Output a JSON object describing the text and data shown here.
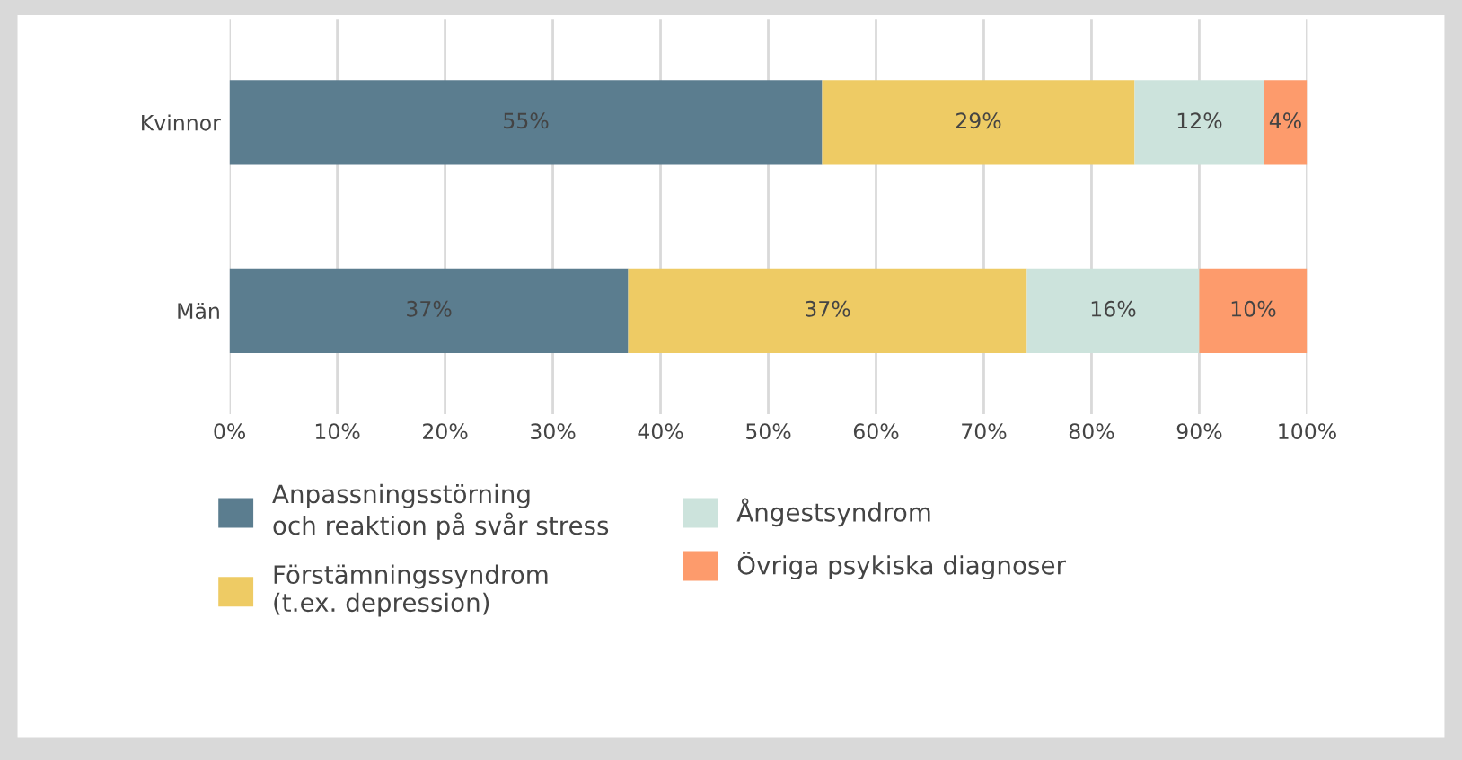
{
  "chart_data": {
    "type": "bar",
    "orientation": "horizontal",
    "stacked": true,
    "categories": [
      "Kvinnor",
      "Män"
    ],
    "series": [
      {
        "name": "Anpassningsstörning\noch reaktion på svår stress",
        "color": "#5b7d8f",
        "values": [
          55,
          37
        ],
        "value_labels": [
          "55%",
          "37%"
        ]
      },
      {
        "name": "Förstämningssyndrom\n(t.ex. depression)",
        "color": "#eecb64",
        "values": [
          29,
          37
        ],
        "value_labels": [
          "29%",
          "37%"
        ]
      },
      {
        "name": "Ångestsyndrom",
        "color": "#cce3dc",
        "values": [
          12,
          16
        ],
        "value_labels": [
          "12%",
          "16%"
        ]
      },
      {
        "name": "Övriga psykiska diagnoser",
        "color": "#fd9b6c",
        "values": [
          4,
          10
        ],
        "value_labels": [
          "4%",
          "10%"
        ]
      }
    ],
    "xlim": [
      0,
      100
    ],
    "xticks": [
      {
        "value": 0,
        "label": "0%"
      },
      {
        "value": 10,
        "label": "10%"
      },
      {
        "value": 20,
        "label": "20%"
      },
      {
        "value": 30,
        "label": "30%"
      },
      {
        "value": 40,
        "label": "40%"
      },
      {
        "value": 50,
        "label": "50%"
      },
      {
        "value": 60,
        "label": "60%"
      },
      {
        "value": 70,
        "label": "70%"
      },
      {
        "value": 80,
        "label": "80%"
      },
      {
        "value": 90,
        "label": "90%"
      },
      {
        "value": 100,
        "label": "100%"
      }
    ],
    "grid": "x",
    "legend": "bottom"
  }
}
